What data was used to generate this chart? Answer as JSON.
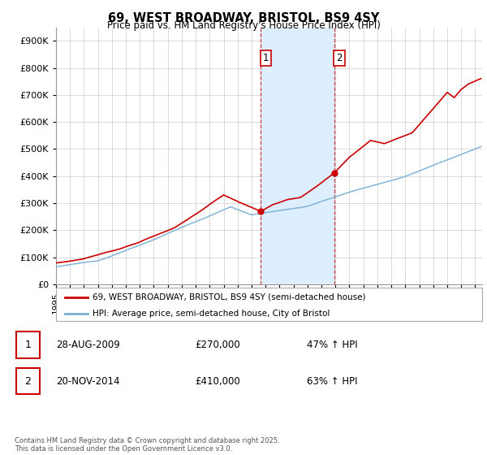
{
  "title": "69, WEST BROADWAY, BRISTOL, BS9 4SY",
  "subtitle": "Price paid vs. HM Land Registry's House Price Index (HPI)",
  "ylim": [
    0,
    950000
  ],
  "yticks": [
    0,
    100000,
    200000,
    300000,
    400000,
    500000,
    600000,
    700000,
    800000,
    900000
  ],
  "ytick_labels": [
    "£0",
    "£100K",
    "£200K",
    "£300K",
    "£400K",
    "£500K",
    "£600K",
    "£700K",
    "£800K",
    "£900K"
  ],
  "sale1_date": 2009.65,
  "sale1_price": 270000,
  "sale2_date": 2014.9,
  "sale2_price": 410000,
  "red_color": "#cc0000",
  "blue_color": "#7aafd4",
  "shading_color": "#ddeeff",
  "legend_line1": "69, WEST BROADWAY, BRISTOL, BS9 4SY (semi-detached house)",
  "legend_line2": "HPI: Average price, semi-detached house, City of Bristol",
  "footer": "Contains HM Land Registry data © Crown copyright and database right 2025.\nThis data is licensed under the Open Government Licence v3.0.",
  "table_row1": [
    "1",
    "28-AUG-2009",
    "£270,000",
    "47% ↑ HPI"
  ],
  "table_row2": [
    "2",
    "20-NOV-2014",
    "£410,000",
    "63% ↑ HPI"
  ]
}
